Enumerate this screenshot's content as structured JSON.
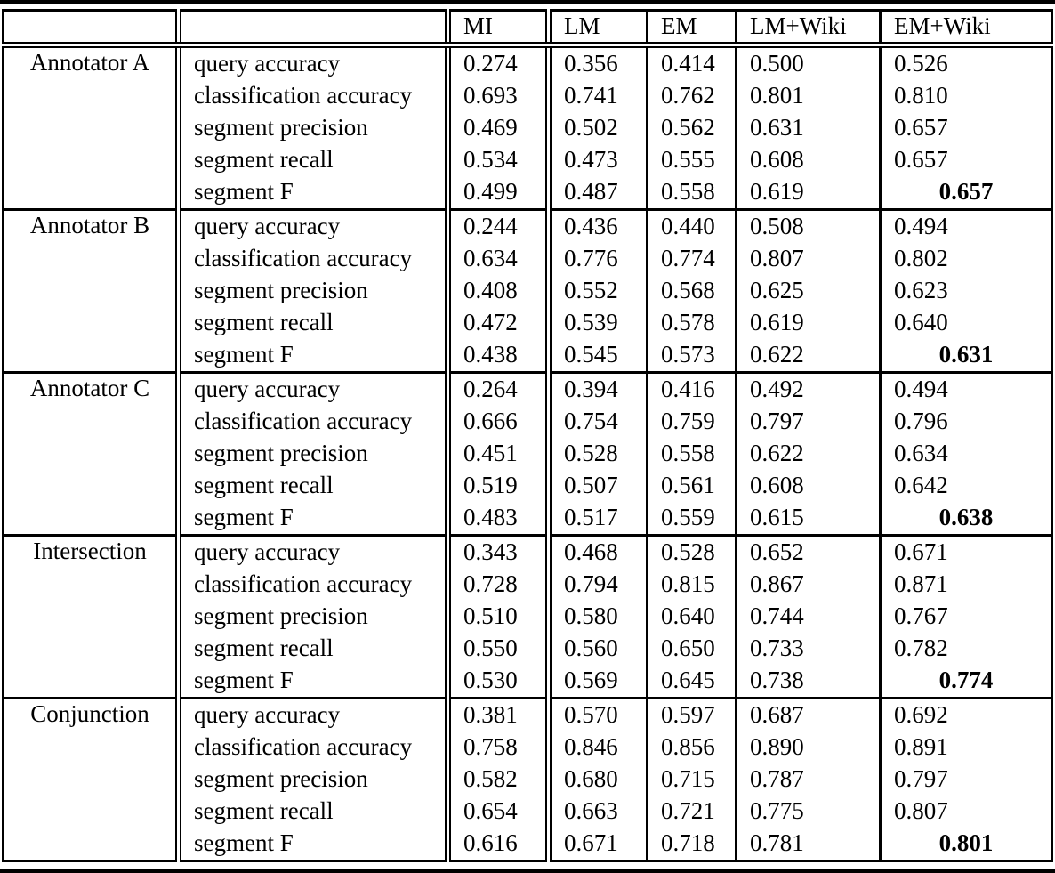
{
  "table": {
    "header": {
      "group_label": "",
      "metric_label": "",
      "methods": [
        "MI",
        "LM",
        "EM",
        "LM+Wiki",
        "EM+Wiki"
      ]
    },
    "metrics": [
      "query accuracy",
      "classification accuracy",
      "segment precision",
      "segment recall",
      "segment F"
    ],
    "groups": [
      {
        "label": "Annotator A",
        "rows": [
          [
            "0.274",
            "0.356",
            "0.414",
            "0.500",
            "0.526"
          ],
          [
            "0.693",
            "0.741",
            "0.762",
            "0.801",
            "0.810"
          ],
          [
            "0.469",
            "0.502",
            "0.562",
            "0.631",
            "0.657"
          ],
          [
            "0.534",
            "0.473",
            "0.555",
            "0.608",
            "0.657"
          ],
          [
            "0.499",
            "0.487",
            "0.558",
            "0.619",
            "0.657"
          ]
        ]
      },
      {
        "label": "Annotator B",
        "rows": [
          [
            "0.244",
            "0.436",
            "0.440",
            "0.508",
            "0.494"
          ],
          [
            "0.634",
            "0.776",
            "0.774",
            "0.807",
            "0.802"
          ],
          [
            "0.408",
            "0.552",
            "0.568",
            "0.625",
            "0.623"
          ],
          [
            "0.472",
            "0.539",
            "0.578",
            "0.619",
            "0.640"
          ],
          [
            "0.438",
            "0.545",
            "0.573",
            "0.622",
            "0.631"
          ]
        ]
      },
      {
        "label": "Annotator C",
        "rows": [
          [
            "0.264",
            "0.394",
            "0.416",
            "0.492",
            "0.494"
          ],
          [
            "0.666",
            "0.754",
            "0.759",
            "0.797",
            "0.796"
          ],
          [
            "0.451",
            "0.528",
            "0.558",
            "0.622",
            "0.634"
          ],
          [
            "0.519",
            "0.507",
            "0.561",
            "0.608",
            "0.642"
          ],
          [
            "0.483",
            "0.517",
            "0.559",
            "0.615",
            "0.638"
          ]
        ]
      },
      {
        "label": "Intersection",
        "rows": [
          [
            "0.343",
            "0.468",
            "0.528",
            "0.652",
            "0.671"
          ],
          [
            "0.728",
            "0.794",
            "0.815",
            "0.867",
            "0.871"
          ],
          [
            "0.510",
            "0.580",
            "0.640",
            "0.744",
            "0.767"
          ],
          [
            "0.550",
            "0.560",
            "0.650",
            "0.733",
            "0.782"
          ],
          [
            "0.530",
            "0.569",
            "0.645",
            "0.738",
            "0.774"
          ]
        ]
      },
      {
        "label": "Conjunction",
        "rows": [
          [
            "0.381",
            "0.570",
            "0.597",
            "0.687",
            "0.692"
          ],
          [
            "0.758",
            "0.846",
            "0.856",
            "0.890",
            "0.891"
          ],
          [
            "0.582",
            "0.680",
            "0.715",
            "0.787",
            "0.797"
          ],
          [
            "0.654",
            "0.663",
            "0.721",
            "0.775",
            "0.807"
          ],
          [
            "0.616",
            "0.671",
            "0.718",
            "0.781",
            "0.801"
          ]
        ]
      }
    ],
    "bold_highlight": {
      "metric": "segment F",
      "method": "EM+Wiki"
    },
    "colors": {
      "rule": "#000000",
      "text": "#000000",
      "background": "#ffffff"
    }
  }
}
